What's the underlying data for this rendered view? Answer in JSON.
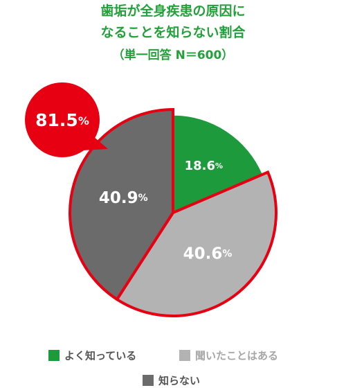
{
  "chart_data": {
    "type": "pie",
    "title": [
      "歯垢が全身疾患の原因に",
      "なることを知らない割合",
      "（単一回答 N＝600）"
    ],
    "slices": [
      {
        "label": "よく知っている",
        "value": 18.6,
        "display": "18.6",
        "color": "#1d9a3b"
      },
      {
        "label": "聞いたことはある",
        "value": 40.6,
        "display": "40.6",
        "color": "#b3b3b3"
      },
      {
        "label": "知らない",
        "value": 40.9,
        "display": "40.9",
        "color": "#6b6b6b"
      }
    ],
    "unit": "%",
    "highlight": {
      "display": "81.5",
      "unit": "%",
      "color": "#e60012"
    },
    "legend_placement": "bottom"
  }
}
